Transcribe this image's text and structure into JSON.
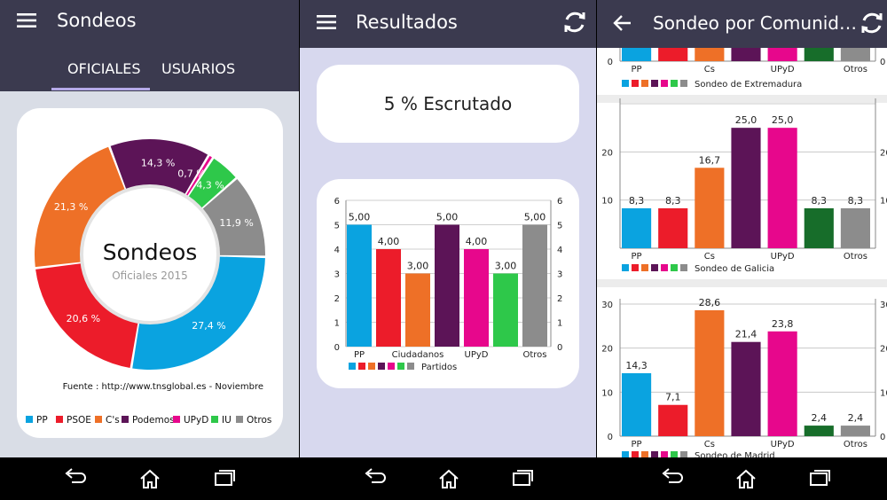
{
  "colors": {
    "appbar": "#3b3a4f",
    "pp": "#0aa3e0",
    "psoe": "#ec1c2a",
    "cs": "#ee7027",
    "podemos": "#5c1457",
    "upyd": "#e7078c",
    "iu": "#2ec84a",
    "iu_dark": "#176d2a",
    "otros": "#8c8c8c"
  },
  "screen1": {
    "title": "Sondeos",
    "tabs": [
      "OFICIALES",
      "USUARIOS"
    ],
    "donut_title": "Sondeos",
    "donut_subtitle": "Oficiales 2015",
    "source": "Fuente : http://www.tnsglobal.es - Noviembre",
    "legend": [
      "PP",
      "PSOE",
      "C's",
      "Podemos",
      "UPyD",
      "IU",
      "Otros"
    ]
  },
  "screen2": {
    "title": "Resultados",
    "scrutiny": "5 % Escrutado",
    "legend_label": "Partidos"
  },
  "screen3": {
    "title": "Sondeo por Comunid…",
    "top_categories": [
      "PP",
      "Cs",
      "UPyD",
      "Otros"
    ],
    "top_zero": "0",
    "top_right_zero": "0",
    "top_legend": "Sondeo de Extremadura"
  },
  "chart_data": [
    {
      "type": "pie",
      "title": "Sondeos",
      "subtitle": "Oficiales 2015",
      "categories": [
        "PP",
        "PSOE",
        "C's",
        "Podemos",
        "UPyD",
        "IU",
        "Otros"
      ],
      "values": [
        27.4,
        20.6,
        21.3,
        14.3,
        0.7,
        4.3,
        11.9
      ],
      "labels": [
        "27,4 %",
        "20,6 %",
        "21,3 %",
        "14,3 %",
        "0,7 %",
        "4,3 %",
        "11,9 %"
      ]
    },
    {
      "type": "bar",
      "categories": [
        "PP",
        "PSOE",
        "Ciudadanos",
        "Podemos",
        "UPyD",
        "IU",
        "Otros"
      ],
      "x_tick_labels": [
        "PP",
        "",
        "Ciudadanos",
        "",
        "UPyD",
        "",
        "Otros"
      ],
      "values": [
        5,
        4,
        3,
        5,
        4,
        3,
        5
      ],
      "labels": [
        "5,00",
        "4,00",
        "3,00",
        "5,00",
        "4,00",
        "3,00",
        "5,00"
      ],
      "ylim": [
        0,
        6
      ],
      "yticks": [
        "0",
        "1",
        "2",
        "3",
        "4",
        "5",
        "6"
      ],
      "legend": "Partidos"
    },
    {
      "type": "bar",
      "legend": "Sondeo de Galicia",
      "categories": [
        "PP",
        "PSOE",
        "Cs",
        "Podemos",
        "UPyD",
        "IU",
        "Otros"
      ],
      "x_tick_labels": [
        "PP",
        "",
        "Cs",
        "",
        "UPyD",
        "",
        "Otros"
      ],
      "values": [
        8.3,
        8.3,
        16.7,
        25.0,
        25.0,
        8.3,
        8.3
      ],
      "labels": [
        "8,3",
        "8,3",
        "16,7",
        "25,0",
        "25,0",
        "8,3",
        "8,3"
      ],
      "ylim": [
        0,
        30
      ],
      "yticks": [
        "10",
        "20"
      ],
      "right_yticks": [
        "10",
        "20"
      ]
    },
    {
      "type": "bar",
      "legend": "Sondeo de Madrid",
      "categories": [
        "PP",
        "PSOE",
        "Cs",
        "Podemos",
        "UPyD",
        "IU",
        "Otros"
      ],
      "x_tick_labels": [
        "PP",
        "",
        "Cs",
        "",
        "UPyD",
        "",
        "Otros"
      ],
      "values": [
        14.3,
        7.1,
        28.6,
        21.4,
        23.8,
        2.4,
        2.4
      ],
      "labels": [
        "14,3",
        "7,1",
        "28,6",
        "21,4",
        "23,8",
        "2,4",
        "2,4"
      ],
      "ylim": [
        0,
        30
      ],
      "yticks": [
        "0",
        "10",
        "20",
        "30"
      ],
      "right_yticks": [
        "0",
        "10",
        "20",
        "30"
      ]
    }
  ]
}
